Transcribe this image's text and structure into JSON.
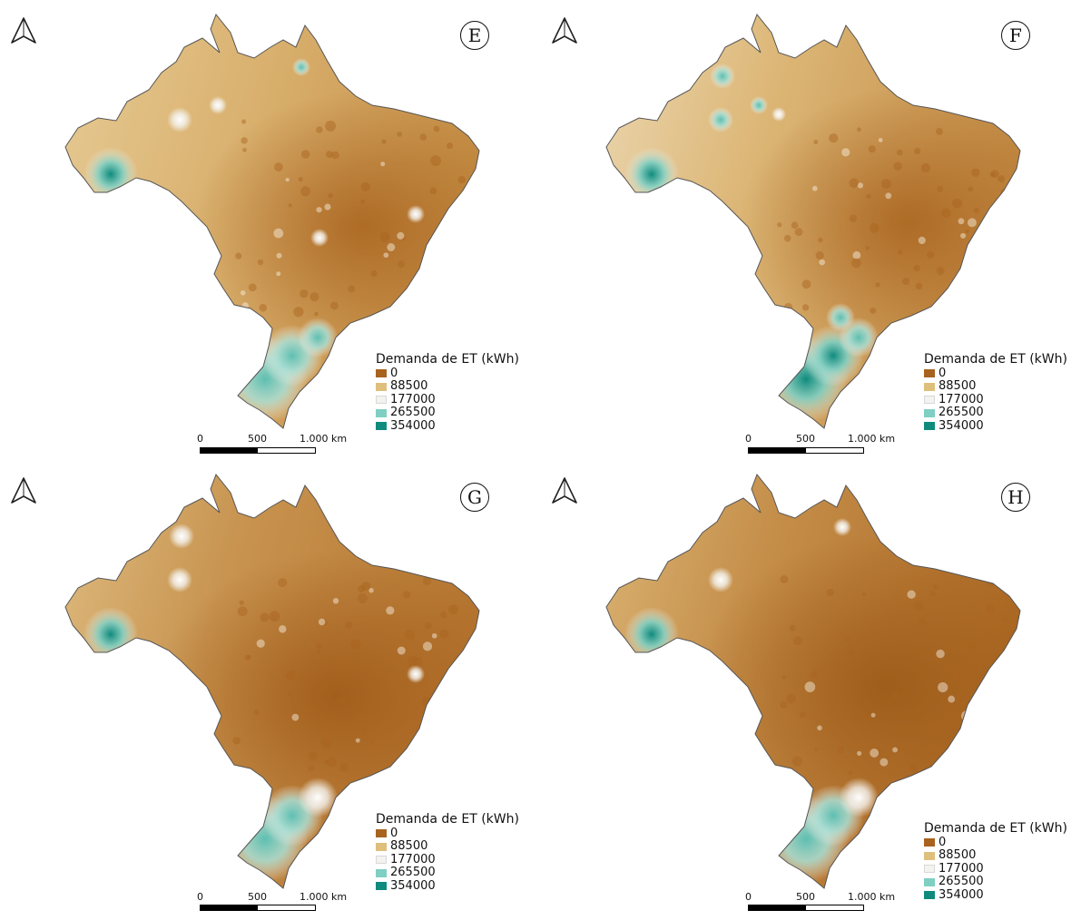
{
  "colors": {
    "c0": "#a8631e",
    "c88500": "#dfbf7c",
    "c177000": "#f4f3ef",
    "c265500": "#7fcfc3",
    "c354000": "#0f8b7e"
  },
  "icons": {
    "north_arrow": "north-arrow-icon"
  },
  "panels": [
    {
      "letter": "E",
      "legend": {
        "title": "Demanda de ET (kWh)",
        "classes": [
          "0",
          "88500",
          "177000",
          "265500",
          "354000"
        ]
      },
      "scalebar": {
        "labels": [
          "0",
          "500",
          "1.000 km"
        ]
      },
      "hotspots": [
        {
          "name": "acre",
          "level": 354000
        },
        {
          "name": "amazonas-1",
          "level": 177000
        },
        {
          "name": "amazonas-2",
          "level": 177000
        },
        {
          "name": "amapa",
          "level": 265500
        },
        {
          "name": "rio-grande-do-sul-1",
          "level": 265500
        },
        {
          "name": "rio-grande-do-sul-2",
          "level": 265500
        },
        {
          "name": "santa-catarina",
          "level": 265500
        },
        {
          "name": "goias",
          "level": 177000
        },
        {
          "name": "bahia",
          "level": 177000
        }
      ]
    },
    {
      "letter": "F",
      "legend": {
        "title": "Demanda de ET (kWh)",
        "classes": [
          "0",
          "88500",
          "177000",
          "265500",
          "354000"
        ]
      },
      "scalebar": {
        "labels": [
          "0",
          "500",
          "1.000 km"
        ]
      },
      "hotspots": [
        {
          "name": "acre",
          "level": 354000
        },
        {
          "name": "roraima",
          "level": 265500
        },
        {
          "name": "amazonas-1",
          "level": 265500
        },
        {
          "name": "amazonas-2",
          "level": 265500
        },
        {
          "name": "para",
          "level": 177000
        },
        {
          "name": "parana",
          "level": 265500
        },
        {
          "name": "rio-grande-do-sul-1",
          "level": 354000
        },
        {
          "name": "rio-grande-do-sul-2",
          "level": 354000
        },
        {
          "name": "santa-catarina",
          "level": 265500
        }
      ]
    },
    {
      "letter": "G",
      "legend": {
        "title": "Demanda de ET (kWh)",
        "classes": [
          "0",
          "88500",
          "177000",
          "265500",
          "354000"
        ]
      },
      "scalebar": {
        "labels": [
          "0",
          "500",
          "1.000 km"
        ]
      },
      "hotspots": [
        {
          "name": "acre",
          "level": 354000
        },
        {
          "name": "roraima",
          "level": 177000
        },
        {
          "name": "amazonas-1",
          "level": 177000
        },
        {
          "name": "rio-grande-do-sul-1",
          "level": 265500
        },
        {
          "name": "rio-grande-do-sul-2",
          "level": 265500
        },
        {
          "name": "santa-catarina",
          "level": 177000
        },
        {
          "name": "bahia",
          "level": 177000
        }
      ]
    },
    {
      "letter": "H",
      "legend": {
        "title": "Demanda de ET (kWh)",
        "classes": [
          "0",
          "88500",
          "177000",
          "265500",
          "354000"
        ]
      },
      "scalebar": {
        "labels": [
          "0",
          "500",
          "1.000 km"
        ]
      },
      "hotspots": [
        {
          "name": "acre",
          "level": 354000
        },
        {
          "name": "amapa",
          "level": 177000
        },
        {
          "name": "amazonas-1",
          "level": 177000
        },
        {
          "name": "rio-grande-do-sul-1",
          "level": 265500
        },
        {
          "name": "rio-grande-do-sul-2",
          "level": 265500
        },
        {
          "name": "santa-catarina",
          "level": 177000
        }
      ]
    }
  ]
}
